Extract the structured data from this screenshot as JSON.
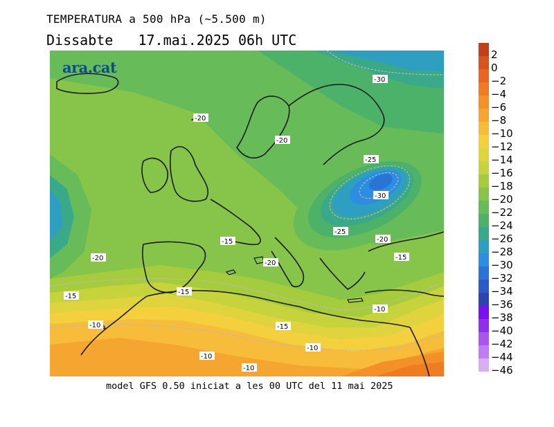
{
  "header": {
    "title": "TEMPERATURA a 500 hPa (~5.500 m)",
    "subtitle": "Dissabte   17.mai.2025 06h UTC"
  },
  "map": {
    "logo": "ara.cat",
    "isotherm_labels": [
      "-30",
      "-20",
      "-20",
      "-25",
      "-30",
      "-25",
      "-15",
      "-20",
      "-20",
      "-15",
      "-20",
      "-15",
      "-15",
      "-10",
      "-15",
      "-10",
      "-10",
      "-10",
      "-10"
    ]
  },
  "footer": {
    "text": "model GFS 0.50 iniciat a les 00 UTC del 11 mai 2025"
  },
  "colorbar": {
    "unit_levels": [
      "2",
      "0",
      "−2",
      "−4",
      "−6",
      "−8",
      "−10",
      "−12",
      "−14",
      "−16",
      "−18",
      "−20",
      "−22",
      "−24",
      "−26",
      "−28",
      "−30",
      "−32",
      "−34",
      "−36",
      "−38",
      "−40",
      "−42",
      "−44",
      "−46"
    ],
    "colors": [
      "#c1401a",
      "#d9541d",
      "#e8661f",
      "#f07c22",
      "#f39128",
      "#f5a631",
      "#f7bd3a",
      "#f4d03f",
      "#dfd43e",
      "#c6d33c",
      "#a6cc3d",
      "#86c44a",
      "#67bb58",
      "#4cb26a",
      "#3aa98a",
      "#2e9fc0",
      "#2b8ee0",
      "#2a74d8",
      "#2a5bc6",
      "#2c44b0",
      "#7a10f0",
      "#9030ee",
      "#a955ee",
      "#c07cf0",
      "#d9aef6"
    ]
  }
}
